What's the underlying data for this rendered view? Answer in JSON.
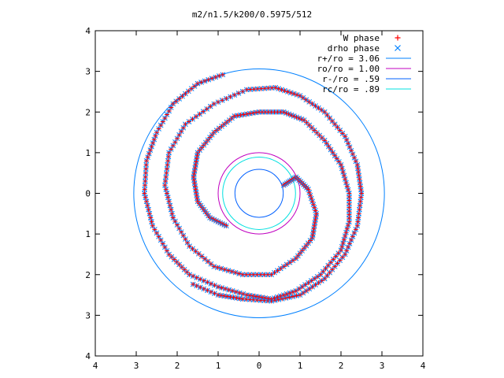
{
  "chart_data": {
    "type": "scatter",
    "title": "m2/n1.5/k200/0.5975/512",
    "xlim": [
      -4,
      4
    ],
    "ylim": [
      -4,
      4
    ],
    "x_tick_labels": [
      {
        "value": -4,
        "label": "4"
      },
      {
        "value": -3,
        "label": "3"
      },
      {
        "value": -2,
        "label": "2"
      },
      {
        "value": -1,
        "label": "1"
      },
      {
        "value": 0,
        "label": "0"
      },
      {
        "value": 1,
        "label": "1"
      },
      {
        "value": 2,
        "label": "2"
      },
      {
        "value": 3,
        "label": "3"
      },
      {
        "value": 4,
        "label": "4"
      }
    ],
    "y_tick_labels": [
      {
        "value": 4,
        "label": "4"
      },
      {
        "value": 3,
        "label": "3"
      },
      {
        "value": 2,
        "label": "2"
      },
      {
        "value": 1,
        "label": "1"
      },
      {
        "value": 0,
        "label": "0"
      },
      {
        "value": -1,
        "label": "1"
      },
      {
        "value": -2,
        "label": "2"
      },
      {
        "value": -3,
        "label": "3"
      },
      {
        "value": -4,
        "label": "4"
      }
    ],
    "grid": false,
    "legend_position": "top-right",
    "legend": [
      {
        "label": "W phase",
        "kind": "marker",
        "marker": "plus",
        "color": "#ff0000"
      },
      {
        "label": "drho phase",
        "kind": "marker",
        "marker": "cross",
        "color": "#0080ff"
      },
      {
        "label": "r+/ro = 3.06",
        "kind": "line",
        "color": "#0080ff"
      },
      {
        "label": "ro/ro = 1.00",
        "kind": "line",
        "color": "#c000c0"
      },
      {
        "label": "r-/ro = .59",
        "kind": "line",
        "color": "#0060ff"
      },
      {
        "label": "rc/ro = .89",
        "kind": "line",
        "color": "#00e0e0"
      }
    ],
    "circles": [
      {
        "name": "r+/ro = 3.06",
        "radius": 3.06,
        "color": "#0080ff"
      },
      {
        "name": "ro/ro = 1.00",
        "radius": 1.0,
        "color": "#c000c0"
      },
      {
        "name": "r-/ro = .59",
        "radius": 0.59,
        "color": "#0060ff"
      },
      {
        "name": "rc/ro = .89",
        "radius": 0.89,
        "color": "#00e0e0"
      }
    ],
    "spiral_arms": [
      {
        "name": "arm-1",
        "points": [
          [
            0.6,
            0.2
          ],
          [
            0.9,
            0.4
          ],
          [
            1.2,
            0.1
          ],
          [
            1.4,
            -0.5
          ],
          [
            1.3,
            -1.1
          ],
          [
            0.9,
            -1.6
          ],
          [
            0.3,
            -2.0
          ],
          [
            -0.4,
            -2.0
          ],
          [
            -1.1,
            -1.8
          ],
          [
            -1.7,
            -1.3
          ],
          [
            -2.1,
            -0.6
          ],
          [
            -2.3,
            0.2
          ],
          [
            -2.2,
            1.0
          ],
          [
            -1.8,
            1.7
          ],
          [
            -1.1,
            2.2
          ],
          [
            -0.3,
            2.55
          ],
          [
            0.4,
            2.6
          ],
          [
            1.0,
            2.4
          ],
          [
            1.6,
            2.0
          ],
          [
            2.1,
            1.4
          ],
          [
            2.4,
            0.7
          ],
          [
            2.5,
            0.0
          ],
          [
            2.4,
            -0.8
          ],
          [
            2.1,
            -1.5
          ],
          [
            1.6,
            -2.1
          ],
          [
            1.0,
            -2.5
          ],
          [
            0.3,
            -2.65
          ],
          [
            -0.4,
            -2.6
          ],
          [
            -1.0,
            -2.5
          ],
          [
            -1.7,
            -2.2
          ]
        ]
      },
      {
        "name": "arm-2",
        "points": [
          [
            -0.8,
            -0.8
          ],
          [
            -1.2,
            -0.6
          ],
          [
            -1.5,
            -0.2
          ],
          [
            -1.6,
            0.4
          ],
          [
            -1.5,
            1.0
          ],
          [
            -1.1,
            1.5
          ],
          [
            -0.6,
            1.9
          ],
          [
            0.0,
            2.0
          ],
          [
            0.6,
            2.0
          ],
          [
            1.1,
            1.8
          ],
          [
            1.6,
            1.3
          ],
          [
            2.0,
            0.7
          ],
          [
            2.2,
            0.0
          ],
          [
            2.2,
            -0.7
          ],
          [
            2.0,
            -1.4
          ],
          [
            1.5,
            -2.0
          ],
          [
            0.9,
            -2.4
          ],
          [
            0.3,
            -2.6
          ],
          [
            -0.3,
            -2.5
          ],
          [
            -1.0,
            -2.3
          ],
          [
            -1.7,
            -2.0
          ],
          [
            -2.2,
            -1.5
          ],
          [
            -2.6,
            -0.8
          ],
          [
            -2.8,
            0.0
          ],
          [
            -2.75,
            0.8
          ],
          [
            -2.5,
            1.5
          ],
          [
            -2.1,
            2.2
          ],
          [
            -1.5,
            2.7
          ],
          [
            -0.8,
            2.95
          ]
        ]
      }
    ]
  }
}
